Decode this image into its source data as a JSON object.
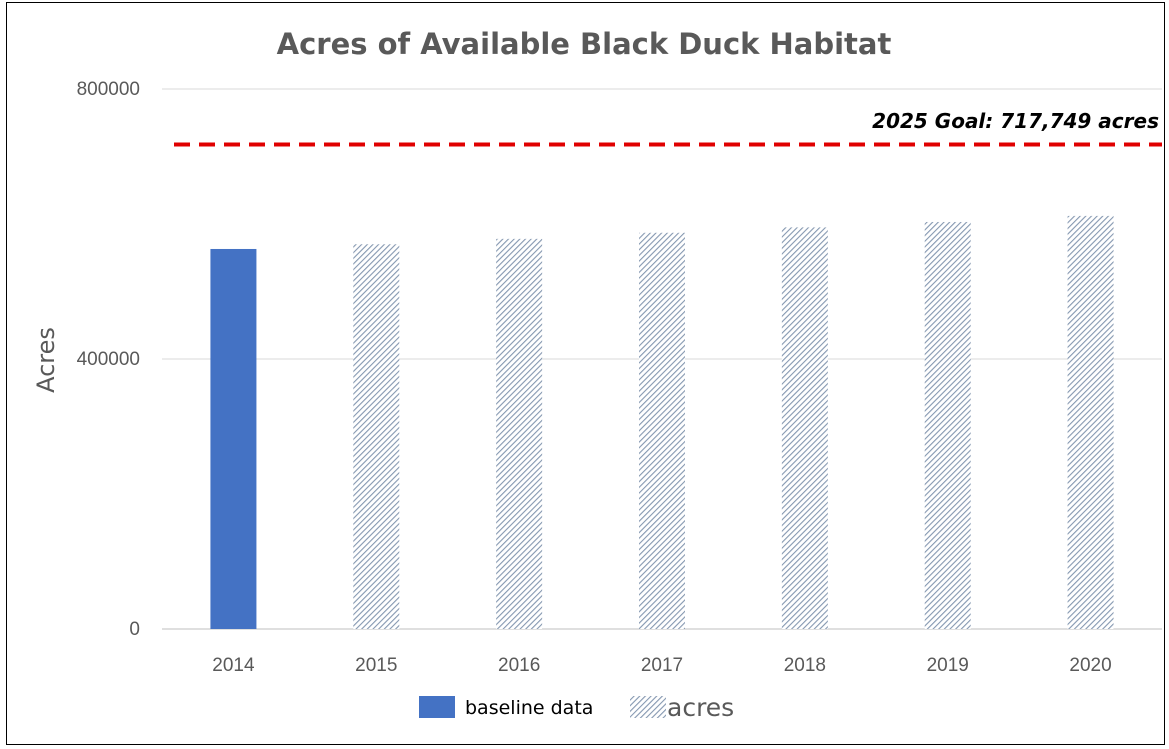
{
  "chart_data": {
    "type": "bar",
    "title": "Acres of Available Black Duck Habitat",
    "ylabel": "Acres",
    "xlabel": "",
    "categories": [
      "2014",
      "2015",
      "2016",
      "2017",
      "2018",
      "2019",
      "2020"
    ],
    "series": [
      {
        "name": "baseline data",
        "values": [
          563000,
          null,
          null,
          null,
          null,
          null,
          null
        ],
        "color": "#4472C4",
        "style": "solid"
      },
      {
        "name": "acres",
        "values": [
          null,
          570000,
          578000,
          587000,
          595000,
          603000,
          612000
        ],
        "color": "#8497B0",
        "style": "diagonal-hatch"
      }
    ],
    "ylim": [
      0,
      800000
    ],
    "yticks": [
      "0",
      "400000",
      "800000"
    ],
    "grid": true,
    "legend_position": "bottom",
    "reference_line": {
      "value": 717749,
      "label": "2025 Goal: 717,749 acres",
      "color": "#E00000",
      "style": "dashed"
    }
  }
}
